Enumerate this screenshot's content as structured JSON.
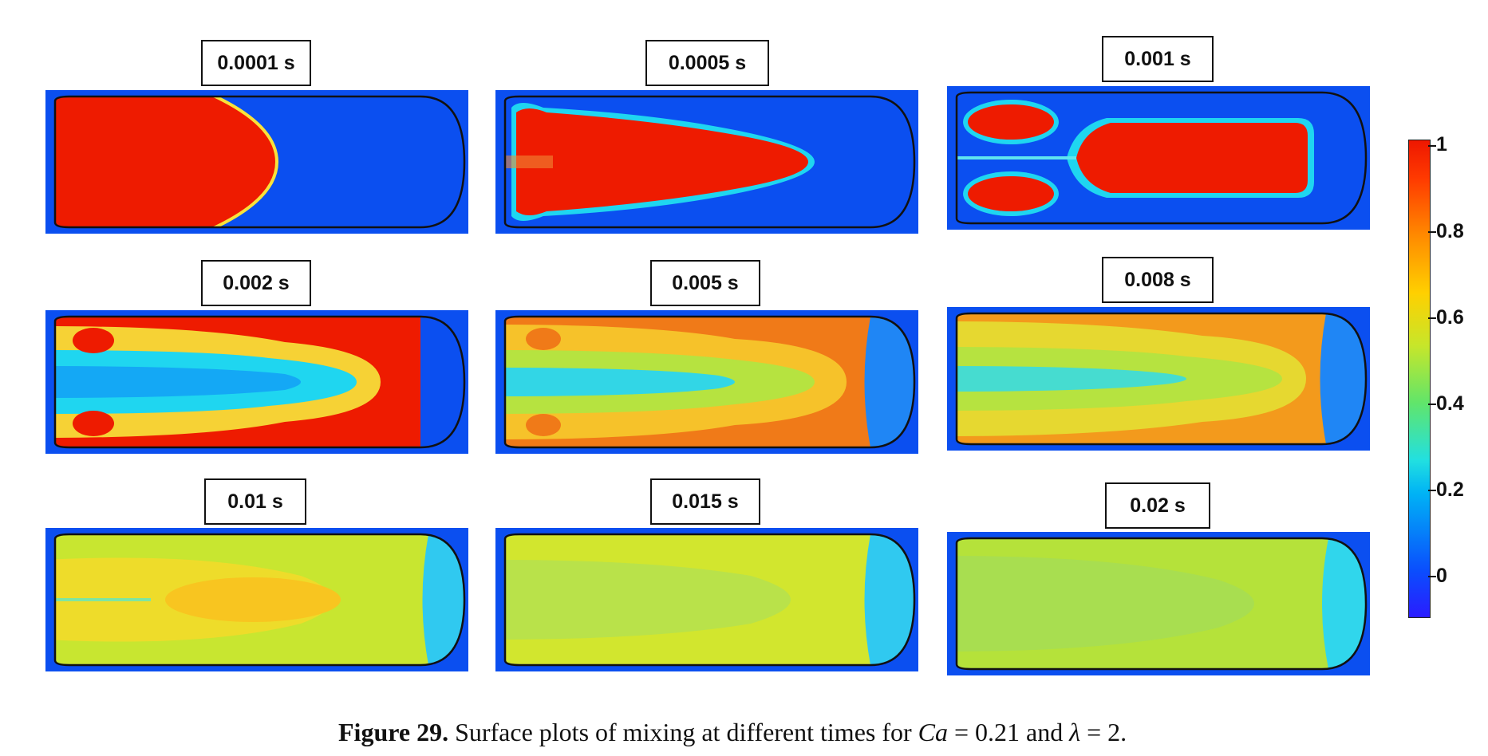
{
  "panels": [
    {
      "time": "0.0001 s",
      "stage": "unmixed-front"
    },
    {
      "time": "0.0005 s",
      "stage": "bullet"
    },
    {
      "time": "0.001 s",
      "stage": "split"
    },
    {
      "time": "0.002 s",
      "stage": "ring"
    },
    {
      "time": "0.005 s",
      "stage": "mixing"
    },
    {
      "time": "0.008 s",
      "stage": "mixing2"
    },
    {
      "time": "0.01 s",
      "stage": "mixed1"
    },
    {
      "time": "0.015 s",
      "stage": "mixed2"
    },
    {
      "time": "0.02 s",
      "stage": "mixed3"
    }
  ],
  "colorbar": {
    "ticks": [
      "1",
      "0.8",
      "0.6",
      "0.4",
      "0.2",
      "0"
    ],
    "tick_values": [
      1,
      0.8,
      0.6,
      0.4,
      0.2,
      0
    ],
    "range": [
      -0.1,
      1.0
    ]
  },
  "colors": {
    "background": "#0b4ff0",
    "high": "#ee1b00",
    "mid": "#c8e630",
    "low": "#1fd6f0"
  },
  "caption": {
    "label": "Figure 29.",
    "text_before": " Surface plots of mixing at different times for ",
    "ca_symbol": "Ca",
    "ca_value": " = 0.21 and ",
    "lambda_symbol": "λ",
    "lambda_value": " = 2."
  }
}
